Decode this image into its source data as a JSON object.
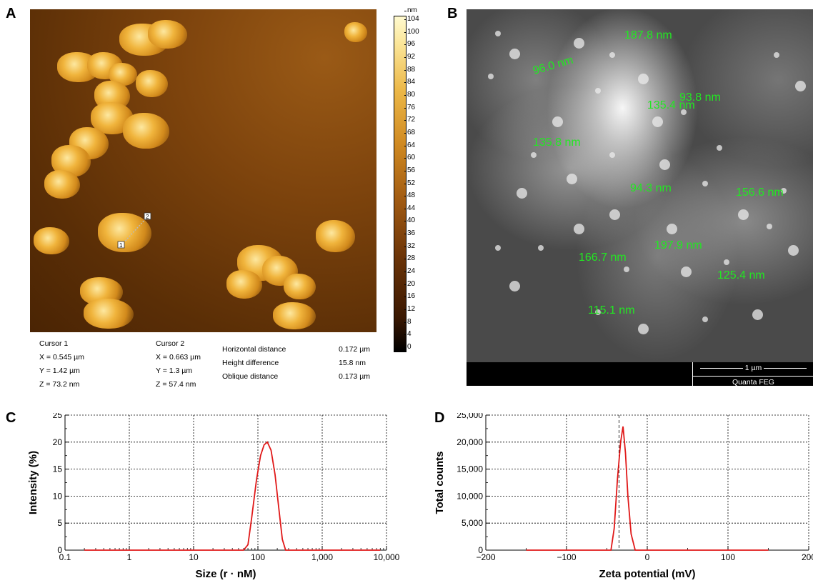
{
  "panels": {
    "a": "A",
    "b": "B",
    "c": "C",
    "d": "D"
  },
  "afm": {
    "unit": "nm",
    "colorbar_ticks": [
      "104",
      "100",
      "96",
      "92",
      "88",
      "84",
      "80",
      "76",
      "72",
      "68",
      "64",
      "60",
      "56",
      "52",
      "48",
      "44",
      "40",
      "36",
      "32",
      "28",
      "24",
      "20",
      "16",
      "12",
      "8",
      "4",
      "0"
    ],
    "marker1": "1",
    "marker2": "2",
    "cursor1": {
      "title": "Cursor 1",
      "x": "X = 0.545 µm",
      "y": "Y = 1.42 µm",
      "z": "Z = 73.2 nm"
    },
    "cursor2": {
      "title": "Cursor 2",
      "x": "X = 0.663 µm",
      "y": "Y = 1.3 µm",
      "z": "Z = 57.4 nm"
    },
    "measure": {
      "h_label": "Horizontal distance",
      "h_value": "0.172 µm",
      "d_label": "Height difference",
      "d_value": "15.8 nm",
      "o_label": "Oblique distance",
      "o_value": "0.173 µm"
    }
  },
  "sem": {
    "labels": [
      "187.8 nm",
      "96.0 nm",
      "93.8 nm",
      "135.4 nm",
      "135.8 nm",
      "94.3 nm",
      "156.6 nm",
      "166.7 nm",
      "197.9 nm",
      "125.4 nm",
      "115.1 nm"
    ],
    "scale": "1 µm",
    "brand": "Quanta FEG"
  },
  "chart_data": [
    {
      "type": "line",
      "panel": "C",
      "xlabel": "Size (r · nM)",
      "ylabel": "Intensity (%)",
      "x_scale": "log",
      "xlim": [
        0.1,
        10000
      ],
      "ylim": [
        0,
        25
      ],
      "x_ticks": [
        "0.1",
        "1",
        "10",
        "100",
        "1,000",
        "10,000"
      ],
      "y_ticks": [
        "0",
        "5",
        "10",
        "15",
        "20",
        "25"
      ],
      "grid": true,
      "line_color": "#e01818",
      "x": [
        0.2,
        60,
        70,
        80,
        95,
        110,
        125,
        140,
        160,
        185,
        215,
        240,
        270,
        8000
      ],
      "y": [
        0,
        0,
        1,
        6,
        13,
        17.5,
        19.5,
        20,
        18.5,
        14,
        7,
        2,
        0,
        0
      ]
    },
    {
      "type": "line",
      "panel": "D",
      "xlabel": "Zeta potential (mV)",
      "ylabel": "Total counts",
      "xlim": [
        -200,
        200
      ],
      "ylim": [
        0,
        25000
      ],
      "x_ticks": [
        "−200",
        "−100",
        "0",
        "100",
        "200"
      ],
      "y_ticks": [
        "0",
        "5,000",
        "10,000",
        "15,000",
        "20,000",
        "25,000"
      ],
      "grid": true,
      "reference_line_x": -35,
      "line_color": "#e01818",
      "x": [
        -150,
        -45,
        -41,
        -37,
        -33,
        -30,
        -27,
        -24,
        -20,
        -15,
        150
      ],
      "y": [
        0,
        0,
        4000,
        13000,
        20000,
        22900,
        18000,
        10000,
        3000,
        0,
        0
      ]
    }
  ]
}
